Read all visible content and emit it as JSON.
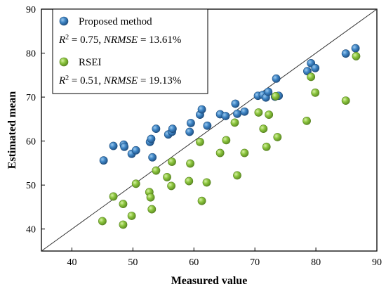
{
  "chart_data": {
    "type": "scatter",
    "title": "",
    "xlabel": "Measured value",
    "ylabel": "Estimated mean",
    "xlim": [
      35,
      90
    ],
    "ylim": [
      35,
      90
    ],
    "xticks": [
      40,
      50,
      60,
      70,
      80,
      90
    ],
    "yticks": [
      40,
      50,
      60,
      70,
      80,
      90
    ],
    "grid": false,
    "legend_position": "top-left",
    "reference_line": "1:1",
    "series": [
      {
        "name": "Proposed method",
        "stat_r2": "0.75",
        "stat_nrmse": "13.61%",
        "color": "#2e75b6",
        "points": [
          [
            45.2,
            55.6
          ],
          [
            46.8,
            58.9
          ],
          [
            48.5,
            59.2
          ],
          [
            48.6,
            58.7
          ],
          [
            49.8,
            57.1
          ],
          [
            50.5,
            57.9
          ],
          [
            52.8,
            59.8
          ],
          [
            53.0,
            60.5
          ],
          [
            53.2,
            56.3
          ],
          [
            53.8,
            62.8
          ],
          [
            55.8,
            61.5
          ],
          [
            56.4,
            62.1
          ],
          [
            56.5,
            62.8
          ],
          [
            59.3,
            62.1
          ],
          [
            59.5,
            64.1
          ],
          [
            61.0,
            66.0
          ],
          [
            61.3,
            67.2
          ],
          [
            62.2,
            63.5
          ],
          [
            64.3,
            66.1
          ],
          [
            65.2,
            65.7
          ],
          [
            66.8,
            68.5
          ],
          [
            67.1,
            66.2
          ],
          [
            68.3,
            66.7
          ],
          [
            70.5,
            70.3
          ],
          [
            71.3,
            70.5
          ],
          [
            71.8,
            69.9
          ],
          [
            72.2,
            71.2
          ],
          [
            73.3,
            70.1
          ],
          [
            73.5,
            74.2
          ],
          [
            73.9,
            70.3
          ],
          [
            78.6,
            75.9
          ],
          [
            79.2,
            77.7
          ],
          [
            79.9,
            76.6
          ],
          [
            84.9,
            79.9
          ],
          [
            86.5,
            81.1
          ]
        ]
      },
      {
        "name": "RSEI",
        "stat_r2": "0.51",
        "stat_nrmse": "19.13%",
        "color": "#8cc63e",
        "points": [
          [
            45.0,
            41.8
          ],
          [
            46.8,
            47.4
          ],
          [
            48.4,
            45.7
          ],
          [
            48.4,
            41.0
          ],
          [
            49.8,
            43.0
          ],
          [
            50.5,
            50.3
          ],
          [
            52.7,
            48.4
          ],
          [
            52.9,
            47.2
          ],
          [
            53.1,
            44.5
          ],
          [
            53.8,
            53.3
          ],
          [
            55.6,
            51.8
          ],
          [
            56.3,
            49.8
          ],
          [
            56.4,
            55.3
          ],
          [
            59.2,
            50.9
          ],
          [
            59.4,
            54.9
          ],
          [
            61.0,
            59.8
          ],
          [
            61.3,
            46.4
          ],
          [
            62.1,
            50.6
          ],
          [
            64.3,
            57.3
          ],
          [
            65.3,
            60.2
          ],
          [
            66.7,
            64.2
          ],
          [
            67.1,
            52.2
          ],
          [
            68.3,
            57.3
          ],
          [
            70.6,
            66.5
          ],
          [
            71.4,
            62.8
          ],
          [
            71.9,
            58.7
          ],
          [
            72.3,
            66.0
          ],
          [
            73.4,
            70.2
          ],
          [
            73.7,
            60.9
          ],
          [
            78.5,
            64.6
          ],
          [
            79.2,
            74.6
          ],
          [
            79.9,
            71.0
          ],
          [
            84.9,
            69.2
          ],
          [
            86.6,
            79.3
          ]
        ]
      }
    ]
  }
}
